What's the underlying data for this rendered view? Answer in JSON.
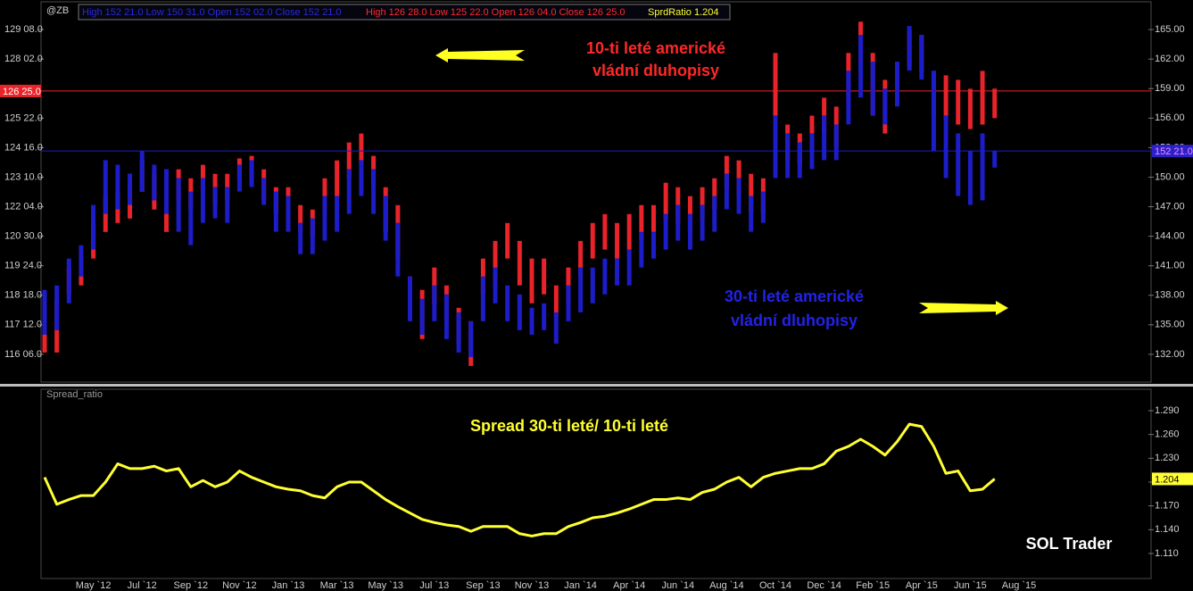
{
  "chart_data": [
    {
      "type": "ohlc",
      "symbol": "@ZB",
      "ylim": [
        115.07,
        130.37
      ],
      "yticks": [
        {
          "value": 116.1875,
          "label": "116 06.0"
        },
        {
          "value": 117.375,
          "label": "117 12.0"
        },
        {
          "value": 118.5625,
          "label": "118 18.0"
        },
        {
          "value": 119.75,
          "label": "119 24.0"
        },
        {
          "value": 120.9375,
          "label": "120 30.0"
        },
        {
          "value": 122.125,
          "label": "122 04.0"
        },
        {
          "value": 123.3125,
          "label": "123 10.0"
        },
        {
          "value": 124.5,
          "label": "124 16.0"
        },
        {
          "value": 125.6875,
          "label": "125 22.0"
        },
        {
          "value": 128.0625,
          "label": "128 02.0"
        },
        {
          "value": 129.25,
          "label": "129 08.0"
        }
      ],
      "y2lim": [
        129.18,
        167.82
      ],
      "y2ticks": [
        {
          "value": 132,
          "label": "132.00"
        },
        {
          "value": 135,
          "label": "135.00"
        },
        {
          "value": 138,
          "label": "138.00"
        },
        {
          "value": 141,
          "label": "141.00"
        },
        {
          "value": 144,
          "label": "144.00"
        },
        {
          "value": 147,
          "label": "147.00"
        },
        {
          "value": 150,
          "label": "150.00"
        },
        {
          "value": 153,
          "label": "153.00"
        },
        {
          "value": 156,
          "label": "156.00"
        },
        {
          "value": 159,
          "label": "159.00"
        },
        {
          "value": 162,
          "label": "162.00"
        },
        {
          "value": 165,
          "label": "165.00"
        }
      ],
      "series": [
        {
          "color": "#e8232a",
          "axis": "y",
          "legend": "High 126 28.0  Low 125 22.0  Open 126 04.0  Close 126 25.0",
          "last": {
            "value": 126.78125,
            "label": "126 25.0"
          },
          "high": [
            117.7,
            118.42,
            119.68,
            120.22,
            121.47,
            122.55,
            122.73,
            122.91,
            123.99,
            123.45,
            122.91,
            123.63,
            123.27,
            123.81,
            123.45,
            123.45,
            124.07,
            124.17,
            123.63,
            122.91,
            122.91,
            122.19,
            122.01,
            123.27,
            123.99,
            124.71,
            125.07,
            124.17,
            122.91,
            122.19,
            119.32,
            118.78,
            119.68,
            118.96,
            118.06,
            117.52,
            120.04,
            120.75,
            121.47,
            120.75,
            120.04,
            120.04,
            118.96,
            119.68,
            120.75,
            121.47,
            121.83,
            121.47,
            121.83,
            122.19,
            122.19,
            123.09,
            122.91,
            122.55,
            122.91,
            123.27,
            124.17,
            123.99,
            123.45,
            123.27,
            128.31,
            125.43,
            125.07,
            125.79,
            126.51,
            126.15,
            128.31,
            129.57,
            128.31,
            127.23,
            127.95,
            129.21,
            129.03,
            127.59,
            127.41,
            127.23,
            126.87,
            127.59,
            126.875
          ],
          "low": [
            116.26,
            116.26,
            118.6,
            118.96,
            120.04,
            121.11,
            121.47,
            121.65,
            122.73,
            122.01,
            121.11,
            122.37,
            122.01,
            122.73,
            122.19,
            122.37,
            123.27,
            123.09,
            122.37,
            121.83,
            121.65,
            121.11,
            120.93,
            121.83,
            122.55,
            123.27,
            123.81,
            122.91,
            121.11,
            120.04,
            117.88,
            116.8,
            118.24,
            117.52,
            116.62,
            115.72,
            118.6,
            118.96,
            120.04,
            118.96,
            118.24,
            118.6,
            117.7,
            118.24,
            119.32,
            120.04,
            120.4,
            120.04,
            120.4,
            120.75,
            121.11,
            121.65,
            121.47,
            121.11,
            121.65,
            122.01,
            122.91,
            122.55,
            121.83,
            121.83,
            123.99,
            123.99,
            123.81,
            124.35,
            125.07,
            124.53,
            126.51,
            127.59,
            125.79,
            125.07,
            126.33,
            127.77,
            127.59,
            125.79,
            125.61,
            125.43,
            125.25,
            125.43,
            125.6875
          ]
        },
        {
          "color": "#1c1cc8",
          "axis": "y2",
          "legend": "High 152 21.0  Low 150 31.0  Open 152 02.0  Close 152 21.0",
          "last": {
            "value": 152.65625,
            "label": "152 21.0"
          },
          "high": [
            138.54,
            139.0,
            141.73,
            143.09,
            147.18,
            151.73,
            151.27,
            150.36,
            152.64,
            151.27,
            150.82,
            149.91,
            148.54,
            149.91,
            149.0,
            149.0,
            151.27,
            151.73,
            149.91,
            148.54,
            148.09,
            145.36,
            145.82,
            148.09,
            148.09,
            150.82,
            151.73,
            150.82,
            148.09,
            145.36,
            139.91,
            137.64,
            139.0,
            138.09,
            136.27,
            135.36,
            139.91,
            140.82,
            139.0,
            138.09,
            136.73,
            137.18,
            136.27,
            139.0,
            140.82,
            140.82,
            141.73,
            141.73,
            142.64,
            144.45,
            144.45,
            146.27,
            147.18,
            146.27,
            147.18,
            148.09,
            150.36,
            149.91,
            148.09,
            148.54,
            156.27,
            154.45,
            153.54,
            154.45,
            156.27,
            155.36,
            160.82,
            164.45,
            161.73,
            159.0,
            161.73,
            165.36,
            164.45,
            160.82,
            156.27,
            154.45,
            152.64,
            154.45,
            152.65625
          ],
          "low": [
            133.99,
            134.45,
            137.18,
            139.91,
            142.64,
            146.27,
            146.73,
            147.18,
            148.54,
            147.64,
            146.27,
            144.45,
            143.09,
            145.36,
            145.82,
            145.36,
            148.54,
            149.0,
            147.18,
            144.45,
            144.45,
            142.18,
            142.18,
            143.55,
            144.45,
            146.27,
            148.09,
            146.27,
            143.55,
            139.91,
            135.36,
            133.99,
            135.36,
            133.55,
            132.18,
            131.73,
            135.36,
            137.18,
            135.36,
            134.45,
            133.99,
            134.45,
            133.09,
            135.36,
            136.27,
            137.18,
            138.09,
            139.0,
            139.0,
            140.82,
            141.73,
            142.64,
            143.55,
            142.64,
            143.55,
            144.45,
            146.73,
            146.27,
            144.45,
            145.36,
            149.91,
            149.91,
            149.91,
            150.82,
            151.73,
            151.73,
            155.36,
            158.09,
            156.27,
            155.36,
            157.18,
            160.82,
            159.91,
            152.64,
            149.91,
            148.09,
            147.18,
            147.64,
            150.96875
          ]
        }
      ],
      "annotations": [
        {
          "text": "10-ti leté americké",
          "color": "#ff2828"
        },
        {
          "text": "vládní dluhopisy",
          "color": "#ff2828"
        },
        {
          "text": "30-ti leté americké",
          "color": "#2222e8"
        },
        {
          "text": "vládní dluhopisy",
          "color": "#2222e8"
        }
      ]
    },
    {
      "type": "line",
      "title": "Spread_ratio",
      "legend": "SprdRatio 1.204",
      "color": "#ffff33",
      "categories": [
        null,
        null,
        null,
        null,
        "May `12",
        null,
        null,
        null,
        "Jul `12",
        null,
        null,
        null,
        "Sep `12",
        null,
        null,
        null,
        "Nov `12",
        null,
        null,
        null,
        "Jan `13",
        null,
        null,
        null,
        "Mar `13",
        null,
        null,
        null,
        "May `13",
        null,
        null,
        null,
        "Jul `13",
        null,
        null,
        null,
        "Sep `13",
        null,
        null,
        null,
        "Nov `13",
        null,
        null,
        null,
        "Jan `14",
        null,
        null,
        null,
        "Apr `14",
        null,
        null,
        null,
        "Jun `14",
        null,
        null,
        null,
        "Aug `14",
        null,
        null,
        null,
        "Oct `14",
        null,
        null,
        null,
        "Dec `14",
        null,
        null,
        null,
        "Feb `15",
        null,
        null,
        null,
        "Apr `15",
        null,
        null,
        null,
        "Jun `15",
        null,
        null,
        null,
        "Aug `15"
      ],
      "values": [
        1.206,
        1.172,
        1.178,
        1.183,
        1.183,
        1.2,
        1.223,
        1.217,
        1.217,
        1.22,
        1.214,
        1.217,
        1.194,
        1.202,
        1.194,
        1.2,
        1.214,
        1.206,
        1.2,
        1.194,
        1.191,
        1.189,
        1.183,
        1.18,
        1.194,
        1.2,
        1.2,
        1.189,
        1.178,
        1.169,
        1.161,
        1.153,
        1.149,
        1.146,
        1.144,
        1.138,
        1.144,
        1.144,
        1.144,
        1.135,
        1.132,
        1.135,
        1.135,
        1.144,
        1.149,
        1.155,
        1.157,
        1.161,
        1.166,
        1.172,
        1.178,
        1.178,
        1.18,
        1.178,
        1.187,
        1.191,
        1.2,
        1.206,
        1.194,
        1.206,
        1.211,
        1.214,
        1.217,
        1.217,
        1.223,
        1.239,
        1.245,
        1.254,
        1.245,
        1.234,
        1.251,
        1.273,
        1.27,
        1.245,
        1.211,
        1.214,
        1.189,
        1.191,
        1.204,
        null,
        null
      ],
      "last": {
        "value": 1.204,
        "label": "1.204"
      },
      "ylim": [
        1.0785,
        1.317
      ],
      "yticks": [
        {
          "value": 1.11,
          "label": "1.110"
        },
        {
          "value": 1.14,
          "label": "1.140"
        },
        {
          "value": 1.17,
          "label": "1.170"
        },
        {
          "value": 1.2,
          "label": "1.200"
        },
        {
          "value": 1.23,
          "label": "1.230"
        },
        {
          "value": 1.26,
          "label": "1.260"
        },
        {
          "value": 1.29,
          "label": "1.290"
        }
      ],
      "annotations": [
        {
          "text": "Spread 30-ti leté/ 10-ti leté",
          "color": "#ffff2e"
        },
        {
          "text": "SOL Trader",
          "color": "#ffffff"
        }
      ]
    }
  ]
}
